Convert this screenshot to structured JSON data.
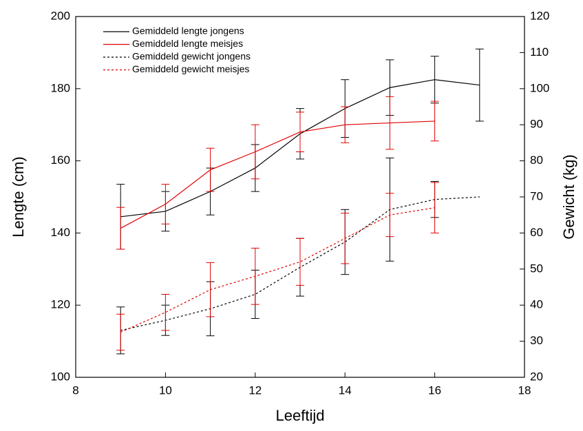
{
  "chart_data": {
    "type": "line",
    "x_label": "Leeftijd",
    "y_label": "Lengte (cm)",
    "y2_label": "Gewicht (kg)",
    "xlim": [
      8,
      18
    ],
    "xticks": [
      8,
      10,
      12,
      14,
      16,
      18
    ],
    "ylim": [
      100,
      200
    ],
    "yticks": [
      100,
      120,
      140,
      160,
      180,
      200
    ],
    "y2lim": [
      20,
      120
    ],
    "y2ticks": [
      20,
      30,
      40,
      50,
      60,
      70,
      80,
      90,
      100,
      110,
      120
    ],
    "legend": "top-left",
    "series": [
      {
        "name": "Gemiddeld lengte jongens",
        "color": "#000000",
        "dashed": false,
        "x": [
          9,
          10,
          11,
          12,
          13,
          14,
          15,
          16,
          17
        ],
        "values": [
          144.5,
          146,
          151.5,
          158,
          167.5,
          174.5,
          180.3,
          182.5,
          181
        ],
        "errors": [
          9,
          5.5,
          6.5,
          6.5,
          7,
          8,
          7.7,
          6.5,
          10
        ]
      },
      {
        "name": "Gemiddeld lengte meisjes",
        "color": "#e00000",
        "dashed": false,
        "x": [
          9,
          10,
          11,
          12,
          13,
          14,
          15,
          16
        ],
        "values": [
          141.3,
          148,
          157.5,
          162.5,
          168,
          170,
          170.5,
          171
        ],
        "errors": [
          5.8,
          5.5,
          6,
          7.5,
          5.5,
          5,
          7.3,
          5.5
        ]
      },
      {
        "name": "Gemiddeld gewicht jongens",
        "color": "#000000",
        "dashed": true,
        "axis": "y2",
        "x": [
          9,
          10,
          11,
          12,
          13,
          14,
          15,
          16,
          17
        ],
        "values": [
          33,
          35.8,
          39,
          43,
          50.5,
          57.5,
          66.5,
          69.3,
          70
        ],
        "errors": [
          6.5,
          4.2,
          7.5,
          6.7,
          8,
          9,
          14.3,
          5,
          null
        ]
      },
      {
        "name": "Gemiddeld gewicht meisjes",
        "color": "#e00000",
        "dashed": true,
        "axis": "y2",
        "x": [
          9,
          10,
          11,
          12,
          13,
          14,
          15,
          16
        ],
        "values": [
          32.5,
          38,
          44.3,
          48,
          52,
          58.5,
          65,
          67
        ],
        "errors": [
          5,
          5,
          7.5,
          7.8,
          6.5,
          7,
          6,
          7
        ]
      }
    ]
  }
}
